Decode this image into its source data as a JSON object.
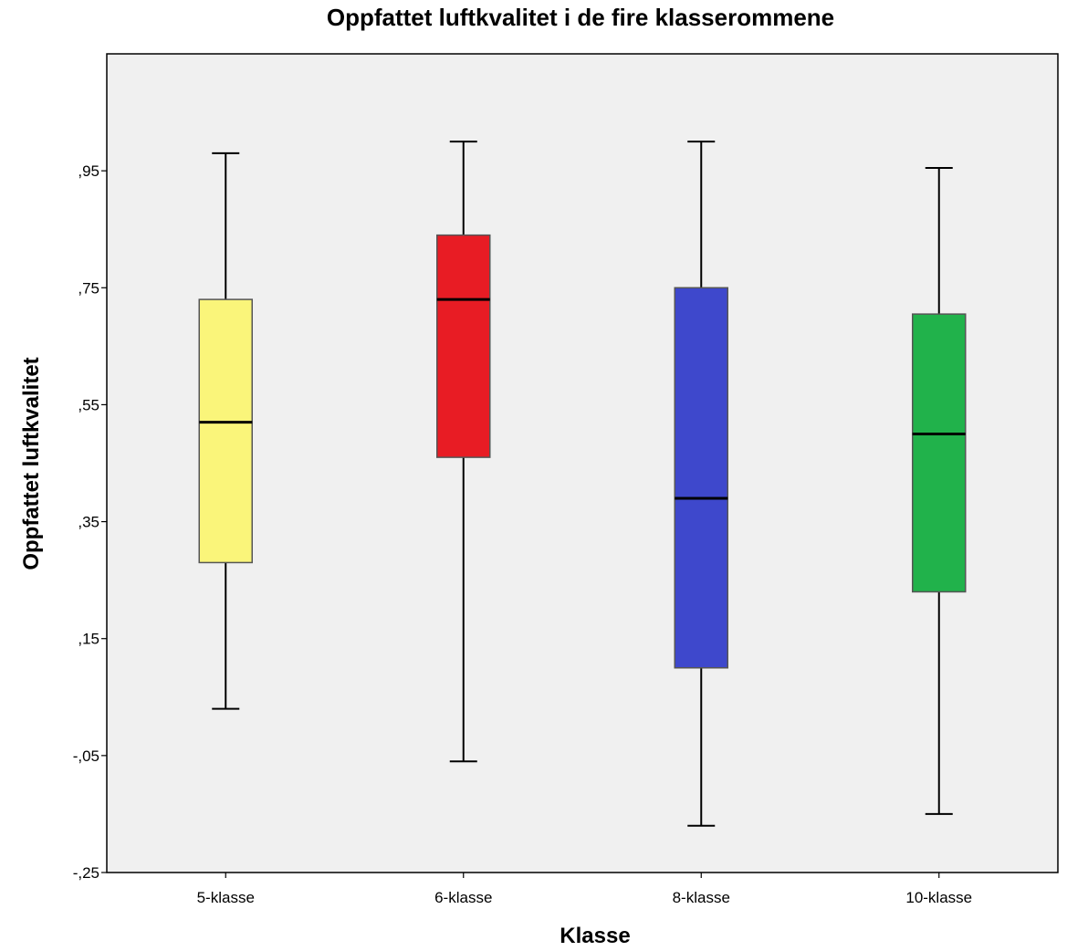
{
  "chart_data": {
    "type": "boxplot",
    "title": "Oppfattet luftkvalitet i de fire klasserommene",
    "xlabel": "Klasse",
    "ylabel": "Oppfattet luftkvalitet",
    "ylim": [
      -0.25,
      1.15
    ],
    "yticks": [
      ",95",
      ",75",
      ",55",
      ",35",
      ",15",
      "-,05",
      "-,25"
    ],
    "ytick_values": [
      0.95,
      0.75,
      0.55,
      0.35,
      0.15,
      -0.05,
      -0.25
    ],
    "categories": [
      "5-klasse",
      "6-klasse",
      "8-klasse",
      "10-klasse"
    ],
    "boxes": [
      {
        "category": "5-klasse",
        "whisker_low": 0.03,
        "q1": 0.28,
        "median": 0.52,
        "q3": 0.73,
        "whisker_high": 0.98,
        "color": "#faf57a"
      },
      {
        "category": "6-klasse",
        "whisker_low": -0.06,
        "q1": 0.46,
        "median": 0.73,
        "q3": 0.84,
        "whisker_high": 1.0,
        "color": "#e81c24"
      },
      {
        "category": "8-klasse",
        "whisker_low": -0.17,
        "q1": 0.1,
        "median": 0.39,
        "q3": 0.75,
        "whisker_high": 1.0,
        "color": "#3e48cc"
      },
      {
        "category": "10-klasse",
        "whisker_low": -0.15,
        "q1": 0.23,
        "median": 0.5,
        "q3": 0.705,
        "whisker_high": 0.955,
        "color": "#21b24b"
      }
    ],
    "background_color": "#f0f0f0",
    "grid": false
  }
}
